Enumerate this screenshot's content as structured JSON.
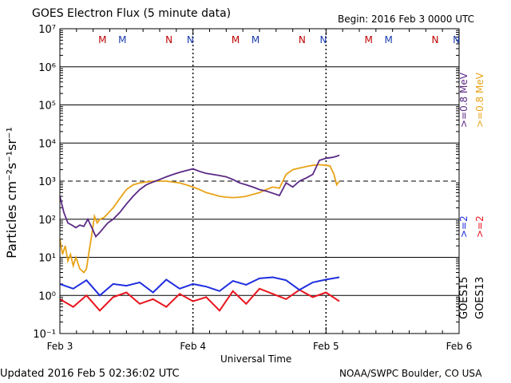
{
  "header": {
    "title": "GOES Electron Flux (5 minute data)",
    "begin": "Begin: 2016 Feb 3 0000 UTC"
  },
  "footer": {
    "updated": "Updated 2016 Feb  5 02:36:02 UTC",
    "credit": "NOAA/SWPC Boulder, CO USA"
  },
  "colors": {
    "goes13_ge08": "#e8a317",
    "goes15_ge08": "#5b2a86",
    "goes13_ge2": "#e8141e",
    "goes15_ge2": "#1f2de0",
    "marker_M": "#c00000",
    "marker_N": "#c00000",
    "marker_M_alt": "#1a3cb0",
    "marker_N_alt": "#1a3cb0"
  },
  "chart_data": {
    "type": "line",
    "title": "GOES Electron Flux (5 minute data)",
    "xlabel": "Universal Time",
    "ylabel": "Particles cm⁻²s⁻¹sr⁻¹",
    "x_unit": "days since 2016 Feb 3 0000 UTC",
    "xlim": [
      0,
      3
    ],
    "x_tick_labels": [
      "Feb 3",
      "Feb 4",
      "Feb 5",
      "Feb 6"
    ],
    "y_scale": "log",
    "ylim": [
      0.1,
      10000000
    ],
    "y_tick_labels": [
      "10⁻¹",
      "10⁰",
      "10¹",
      "10²",
      "10³",
      "10⁴",
      "10⁵",
      "10⁶",
      "10⁷"
    ],
    "reference_line": 1000,
    "grid": true,
    "legend_right": [
      {
        "text": ">=0.8  MeV",
        "series": "GOES15 >=0.8 MeV"
      },
      {
        "text": ">=0.8  MeV",
        "series": "GOES13 >=0.8 MeV"
      },
      {
        "text": ">=2",
        "series": "GOES15 >=2 MeV"
      },
      {
        "text": ">=2",
        "series": "GOES13 >=2 MeV"
      },
      {
        "text": "GOES15",
        "series": "GOES15"
      },
      {
        "text": "GOES13",
        "series": "GOES13"
      }
    ],
    "markers": [
      {
        "day": 0.32,
        "label": "M",
        "which": "M1"
      },
      {
        "day": 0.47,
        "label": "M",
        "which": "M2"
      },
      {
        "day": 0.82,
        "label": "N",
        "which": "N1"
      },
      {
        "day": 0.98,
        "label": "N",
        "which": "N2"
      },
      {
        "day": 1.32,
        "label": "M",
        "which": "M1"
      },
      {
        "day": 1.47,
        "label": "M",
        "which": "M2"
      },
      {
        "day": 1.82,
        "label": "N",
        "which": "N1"
      },
      {
        "day": 1.98,
        "label": "N",
        "which": "N2"
      },
      {
        "day": 2.32,
        "label": "M",
        "which": "M1"
      },
      {
        "day": 2.47,
        "label": "M",
        "which": "M2"
      },
      {
        "day": 2.82,
        "label": "N",
        "which": "N1"
      },
      {
        "day": 2.98,
        "label": "N",
        "which": "N2"
      }
    ],
    "series": [
      {
        "name": "GOES15 >=0.8 MeV",
        "x": [
          0.0,
          0.03,
          0.06,
          0.09,
          0.12,
          0.15,
          0.18,
          0.21,
          0.24,
          0.27,
          0.3,
          0.33,
          0.36,
          0.4,
          0.45,
          0.5,
          0.55,
          0.6,
          0.65,
          0.7,
          0.75,
          0.8,
          0.85,
          0.9,
          0.95,
          1.0,
          1.05,
          1.1,
          1.15,
          1.2,
          1.25,
          1.3,
          1.35,
          1.4,
          1.45,
          1.5,
          1.55,
          1.6,
          1.65,
          1.7,
          1.75,
          1.8,
          1.85,
          1.9,
          1.95,
          2.0,
          2.05,
          2.08,
          2.1
        ],
        "y": [
          400,
          150,
          80,
          70,
          60,
          70,
          65,
          100,
          60,
          35,
          45,
          60,
          80,
          100,
          150,
          250,
          400,
          600,
          800,
          950,
          1100,
          1300,
          1500,
          1700,
          1900,
          2100,
          1800,
          1600,
          1500,
          1400,
          1300,
          1100,
          900,
          800,
          700,
          600,
          550,
          480,
          420,
          900,
          700,
          1000,
          1200,
          1500,
          3500,
          4000,
          4200,
          4500,
          4800
        ]
      },
      {
        "name": "GOES13 >=0.8 MeV",
        "x": [
          0.0,
          0.02,
          0.04,
          0.06,
          0.08,
          0.1,
          0.12,
          0.15,
          0.18,
          0.2,
          0.22,
          0.24,
          0.26,
          0.28,
          0.3,
          0.33,
          0.36,
          0.4,
          0.45,
          0.5,
          0.55,
          0.6,
          0.65,
          0.7,
          0.75,
          0.8,
          0.85,
          0.9,
          0.95,
          1.0,
          1.05,
          1.1,
          1.15,
          1.2,
          1.25,
          1.3,
          1.35,
          1.4,
          1.45,
          1.5,
          1.55,
          1.6,
          1.65,
          1.7,
          1.75,
          1.8,
          1.85,
          1.9,
          1.95,
          2.0,
          2.03,
          2.06,
          2.08,
          2.1
        ],
        "y": [
          30,
          12,
          20,
          8,
          12,
          6,
          10,
          5,
          4,
          5,
          15,
          40,
          120,
          80,
          100,
          110,
          140,
          200,
          350,
          600,
          800,
          900,
          950,
          1000,
          1000,
          1000,
          950,
          900,
          800,
          700,
          600,
          500,
          450,
          400,
          380,
          370,
          380,
          400,
          450,
          500,
          600,
          700,
          650,
          1500,
          2000,
          2200,
          2400,
          2600,
          2700,
          2600,
          2500,
          1500,
          800,
          1000
        ]
      },
      {
        "name": "GOES15 >=2 MeV",
        "x": [
          0.0,
          0.1,
          0.2,
          0.3,
          0.4,
          0.5,
          0.6,
          0.7,
          0.8,
          0.9,
          1.0,
          1.1,
          1.2,
          1.3,
          1.4,
          1.5,
          1.6,
          1.7,
          1.8,
          1.9,
          2.0,
          2.1
        ],
        "y": [
          2,
          1.5,
          2.5,
          1,
          2,
          1.8,
          2.2,
          1.2,
          2.6,
          1.5,
          2,
          1.7,
          1.3,
          2.4,
          1.9,
          2.8,
          3,
          2.5,
          1.4,
          2.2,
          2.6,
          3
        ]
      },
      {
        "name": "GOES13 >=2 MeV",
        "x": [
          0.0,
          0.1,
          0.2,
          0.3,
          0.4,
          0.5,
          0.6,
          0.7,
          0.8,
          0.9,
          1.0,
          1.1,
          1.2,
          1.3,
          1.4,
          1.5,
          1.6,
          1.7,
          1.8,
          1.9,
          2.0,
          2.1
        ],
        "y": [
          0.8,
          0.5,
          1,
          0.4,
          0.9,
          1.2,
          0.6,
          0.8,
          0.5,
          1.1,
          0.7,
          0.9,
          0.4,
          1.3,
          0.6,
          1.5,
          1.1,
          0.8,
          1.4,
          0.9,
          1.2,
          0.7
        ]
      }
    ]
  }
}
